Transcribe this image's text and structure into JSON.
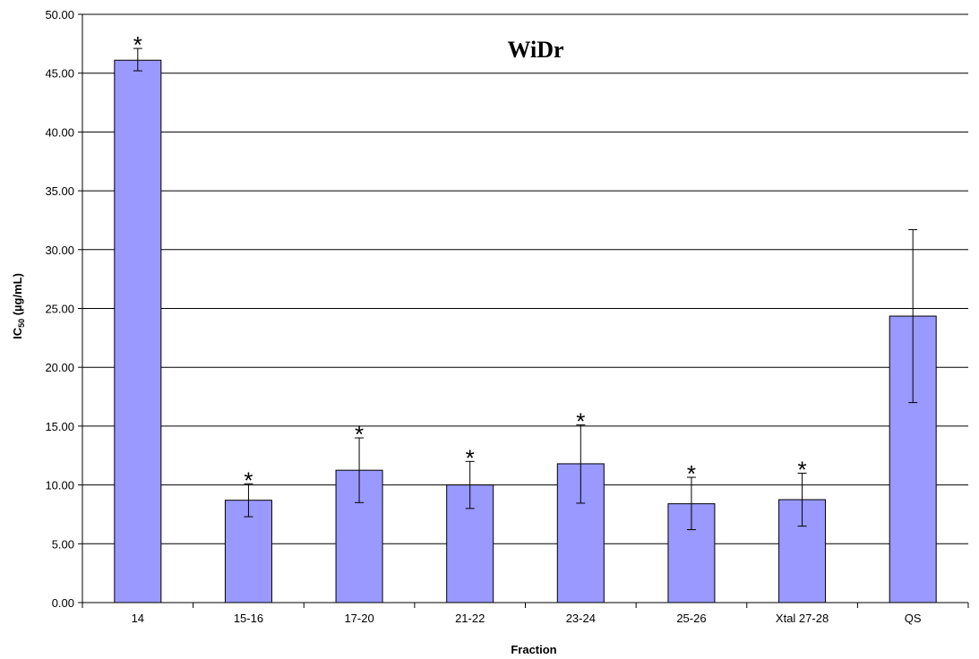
{
  "chart_data": {
    "type": "bar",
    "title": "WiDr",
    "xlabel": "Fraction",
    "ylabel_main": "IC",
    "ylabel_sub": "50",
    "ylabel_unit": " (µg/mL)",
    "ylim": [
      0,
      50
    ],
    "yticks": [
      "0.00",
      "5.00",
      "10.00",
      "15.00",
      "20.00",
      "25.00",
      "30.00",
      "35.00",
      "40.00",
      "45.00",
      "50.00"
    ],
    "categories": [
      "14",
      "15-16",
      "17-20",
      "21-22",
      "23-24",
      "25-26",
      "Xtal 27-28",
      "QS"
    ],
    "values": [
      46.1,
      8.7,
      11.25,
      10.0,
      11.8,
      8.4,
      8.75,
      24.35
    ],
    "error_low": [
      45.2,
      7.3,
      8.5,
      8.0,
      8.45,
      6.2,
      6.5,
      17.0
    ],
    "error_high": [
      47.1,
      10.1,
      14.0,
      12.0,
      15.1,
      10.65,
      11.0,
      31.7
    ],
    "significance_marks": [
      "*",
      "*",
      "*",
      "*",
      "*",
      "*",
      "*",
      ""
    ],
    "bar_color": "#9999ff",
    "grid": true,
    "legend": "none"
  }
}
